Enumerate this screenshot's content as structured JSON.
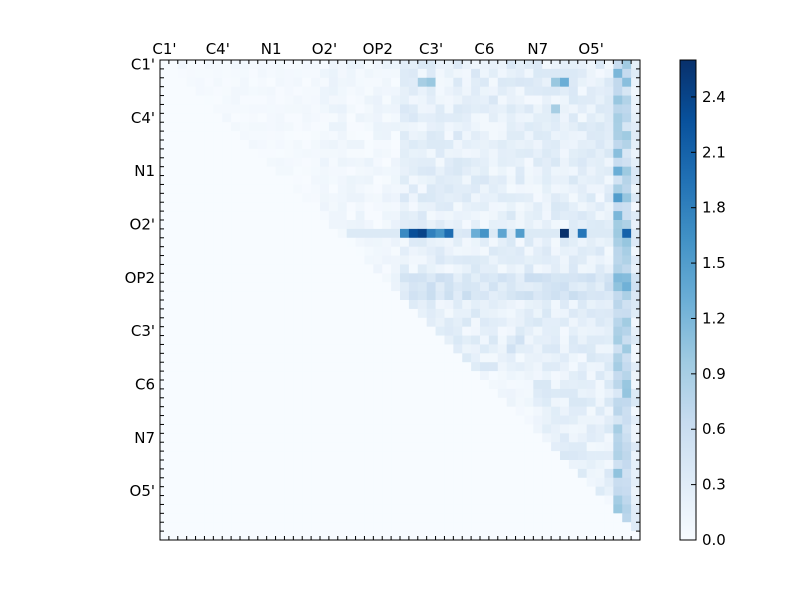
{
  "chart_data": {
    "type": "heatmap",
    "title": "",
    "xlabel": "",
    "ylabel": "",
    "n_cells": 54,
    "x_tick_labels": [
      "C1'",
      "C4'",
      "N1",
      "O2'",
      "OP2",
      "C3'",
      "C6",
      "N7",
      "O5'"
    ],
    "y_tick_labels": [
      "C1'",
      "C4'",
      "N1",
      "O2'",
      "OP2",
      "C3'",
      "C6",
      "N7",
      "O5'"
    ],
    "label_tick_indices": [
      0,
      6,
      12,
      18,
      24,
      30,
      36,
      42,
      48
    ],
    "colorbar": {
      "colormap": "Blues",
      "min": 0.0,
      "max": 2.6,
      "ticks": [
        "0.0",
        "0.3",
        "0.6",
        "0.9",
        "1.2",
        "1.5",
        "1.8",
        "2.1",
        "2.4"
      ]
    },
    "values_note": "upper-triangular matrix; cells are sparse, most near 0.0-0.6",
    "highlight_row_O2_prime": [
      {
        "col": 27,
        "value": 1.7
      },
      {
        "col": 28,
        "value": 2.3
      },
      {
        "col": 29,
        "value": 2.4
      },
      {
        "col": 30,
        "value": 1.8
      },
      {
        "col": 31,
        "value": 1.6
      },
      {
        "col": 32,
        "value": 2.0
      },
      {
        "col": 35,
        "value": 1.3
      },
      {
        "col": 36,
        "value": 1.6
      },
      {
        "col": 38,
        "value": 1.4
      },
      {
        "col": 40,
        "value": 1.5
      },
      {
        "col": 45,
        "value": 2.6
      },
      {
        "col": 47,
        "value": 1.9
      },
      {
        "col": 52,
        "value": 2.1
      }
    ]
  }
}
